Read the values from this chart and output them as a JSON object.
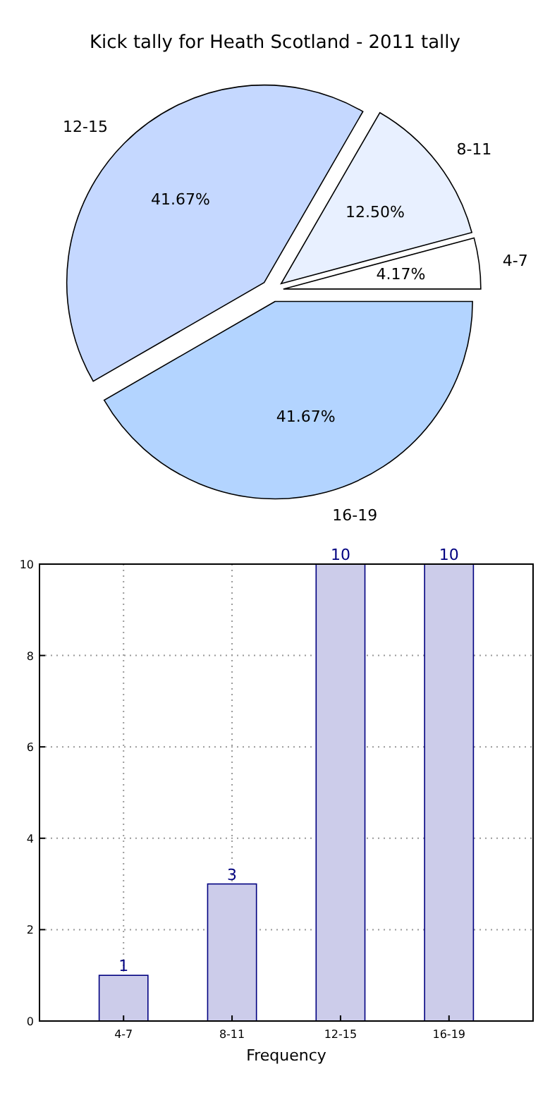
{
  "chart_data": [
    {
      "type": "pie",
      "title": "Kick tally for Heath Scotland - 2011 tally",
      "categories": [
        "4-7",
        "8-11",
        "12-15",
        "16-19"
      ],
      "values": [
        4.17,
        12.5,
        41.67,
        41.67
      ],
      "colors": [
        "#ffffff",
        "#e8f0ff",
        "#c5d8ff",
        "#b3d4ff"
      ],
      "value_labels": [
        "4.17%",
        "12.50%",
        "41.67%",
        "41.67%"
      ]
    },
    {
      "type": "bar",
      "xlabel": "Frequency",
      "categories": [
        "4-7",
        "8-11",
        "12-15",
        "16-19"
      ],
      "values": [
        1,
        3,
        10,
        10
      ],
      "color": "#ccccea",
      "ylim": [
        0,
        10
      ],
      "yticks": [
        0,
        2,
        4,
        6,
        8,
        10
      ],
      "grid": true,
      "data_labels": true
    }
  ]
}
